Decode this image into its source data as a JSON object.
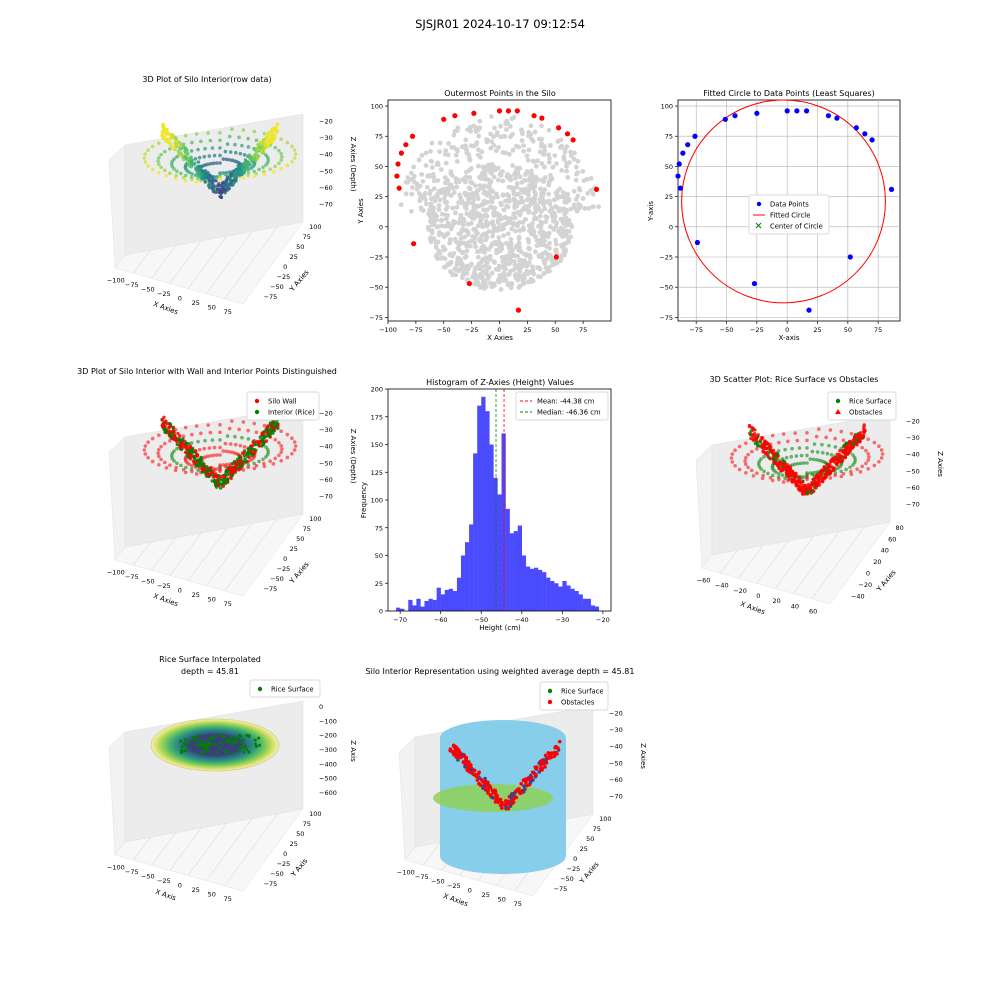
{
  "suptitle": "SJSJR01 2024-10-17 09:12:54",
  "colors": {
    "red": "#ff0000",
    "blue": "#0000ff",
    "green": "#008000",
    "gray": "#d3d3d3",
    "hist": "#4a4aff",
    "cylinder": "#87ceeb"
  },
  "chart_data": [
    {
      "id": "p1",
      "type": "scatter3d",
      "title": "3D Plot of Silo Interior(row data)",
      "xlabel": "X Axies",
      "ylabel": "Y Axies",
      "zlabel": "Z Axies (Depth)",
      "xticks": [
        "−100",
        "−75",
        "−50",
        "−25",
        "0",
        "25",
        "50",
        "75"
      ],
      "yticks": [
        "−75",
        "−50",
        "−25",
        "0",
        "25",
        "50",
        "75",
        "100"
      ],
      "zticks": [
        "−70",
        "−60",
        "−50",
        "−40",
        "−30",
        "−20"
      ],
      "colormap": "viridis"
    },
    {
      "id": "p2",
      "type": "scatter",
      "title": "Outermost Points in the Silo",
      "xlabel": "X Axies",
      "ylabel": "Y Axies",
      "xlim": [
        -100,
        100
      ],
      "ylim": [
        -78,
        105
      ],
      "xticks": [
        "−100",
        "−75",
        "−50",
        "−25",
        "0",
        "25",
        "50",
        "75"
      ],
      "yticks": [
        "−75",
        "−50",
        "−25",
        "0",
        "25",
        "50",
        "75",
        "100"
      ],
      "outer_points": [
        [
          -92,
          42
        ],
        [
          -91,
          52
        ],
        [
          -90,
          32
        ],
        [
          -88,
          61
        ],
        [
          -84,
          68
        ],
        [
          -78,
          75
        ],
        [
          -77,
          -14
        ],
        [
          -50,
          89
        ],
        [
          -40,
          92
        ],
        [
          -27,
          -47
        ],
        [
          -23,
          94
        ],
        [
          0,
          96
        ],
        [
          8,
          96
        ],
        [
          16,
          96
        ],
        [
          17,
          -69
        ],
        [
          31,
          92
        ],
        [
          38,
          90
        ],
        [
          51,
          -25
        ],
        [
          53,
          82
        ],
        [
          61,
          77
        ],
        [
          66,
          72
        ],
        [
          87,
          31
        ]
      ]
    },
    {
      "id": "p3",
      "type": "scatter",
      "title": "Fitted Circle to Data Points (Least Squares)",
      "xlabel": "X-axis",
      "ylabel": "Y-axis",
      "xlim": [
        -90,
        93
      ],
      "ylim": [
        -78,
        105
      ],
      "xticks": [
        "−75",
        "−50",
        "−25",
        "0",
        "25",
        "50",
        "75"
      ],
      "yticks": [
        "−75",
        "−50",
        "−25",
        "0",
        "25",
        "50",
        "75",
        "100"
      ],
      "grid": true,
      "legend": [
        "Data Points",
        "Fitted Circle",
        "Center of Circle"
      ],
      "legend_position": "center",
      "points": [
        [
          -90,
          42
        ],
        [
          -89,
          52
        ],
        [
          -88,
          32
        ],
        [
          -86,
          61
        ],
        [
          -82,
          68
        ],
        [
          -76,
          75
        ],
        [
          -74,
          -13
        ],
        [
          -51,
          89
        ],
        [
          -43,
          92
        ],
        [
          -27,
          -47
        ],
        [
          -25,
          94
        ],
        [
          0,
          96
        ],
        [
          8,
          96
        ],
        [
          16,
          96
        ],
        [
          18,
          -69
        ],
        [
          34,
          92
        ],
        [
          41,
          90
        ],
        [
          52,
          -25
        ],
        [
          57,
          82
        ],
        [
          64,
          77
        ],
        [
          70,
          72
        ],
        [
          86,
          31
        ]
      ],
      "circle": {
        "cx": -3,
        "cy": 21,
        "r": 84
      }
    },
    {
      "id": "p4",
      "type": "scatter3d",
      "title": "3D Plot of Silo Interior with Wall and Interior Points Distinguished",
      "xlabel": "X Axies",
      "ylabel": "Y Axies",
      "zlabel": "Z Axies (Depth)",
      "xticks": [
        "−100",
        "−75",
        "−50",
        "−25",
        "0",
        "25",
        "50",
        "75"
      ],
      "yticks": [
        "−75",
        "−50",
        "−25",
        "0",
        "25",
        "50",
        "75",
        "100"
      ],
      "zticks": [
        "−70",
        "−60",
        "−50",
        "−40",
        "−30",
        "−20"
      ],
      "legend": [
        "Silo Wall",
        "Interior (Rice)"
      ],
      "legend_position": "top-right"
    },
    {
      "id": "p5",
      "type": "bar",
      "title": "Histogram of Z-Axies (Height) Values",
      "xlabel": "Height (cm)",
      "ylabel": "Frequency",
      "xlim": [
        -73,
        -18
      ],
      "ylim": [
        0,
        200
      ],
      "xticks": [
        "−70",
        "−60",
        "−50",
        "−40",
        "−30",
        "−20"
      ],
      "yticks": [
        "0",
        "25",
        "50",
        "75",
        "100",
        "125",
        "150",
        "175",
        "200"
      ],
      "bin_start": -71,
      "bin_width": 1,
      "values": [
        3,
        2,
        0,
        10,
        5,
        11,
        4,
        9,
        11,
        10,
        21,
        15,
        19,
        20,
        18,
        30,
        50,
        62,
        78,
        142,
        185,
        193,
        180,
        150,
        120,
        105,
        160,
        92,
        70,
        72,
        77,
        50,
        40,
        38,
        39,
        37,
        35,
        30,
        27,
        25,
        22,
        27,
        23,
        20,
        18,
        15,
        11,
        11,
        5,
        4
      ],
      "mean": -44.38,
      "median": -46.36,
      "legend": [
        "Mean: -44.38 cm",
        "Median: -46.36 cm"
      ],
      "legend_position": "top-right"
    },
    {
      "id": "p6",
      "type": "scatter3d",
      "title": "3D Scatter Plot: Rice Surface vs Obstacles",
      "xlabel": "X Axies",
      "ylabel": "Y Axies",
      "zlabel": "Z Axies",
      "xticks": [
        "−60",
        "−40",
        "−20",
        "0",
        "20",
        "40",
        "60"
      ],
      "yticks": [
        "−40",
        "−20",
        "0",
        "20",
        "40",
        "60",
        "80"
      ],
      "zticks": [
        "−70",
        "−60",
        "−50",
        "−40",
        "−30",
        "−20"
      ],
      "legend": [
        "Rice Surface",
        "Obstacles"
      ],
      "legend_position": "top-right"
    },
    {
      "id": "p7",
      "type": "surface3d",
      "title": "Rice Surface Interpolated",
      "subtitle": "depth = 45.81",
      "xlabel": "X Axis",
      "ylabel": "Y Axis",
      "zlabel": "Z Axis",
      "xticks": [
        "−100",
        "−75",
        "−50",
        "−25",
        "0",
        "25",
        "50",
        "75"
      ],
      "yticks": [
        "−75",
        "−50",
        "−25",
        "0",
        "25",
        "50",
        "75",
        "100"
      ],
      "zticks": [
        "−600",
        "−500",
        "−400",
        "−300",
        "−200",
        "−100",
        "0"
      ],
      "legend": [
        "Rice Surface"
      ],
      "legend_position": "top-right"
    },
    {
      "id": "p8",
      "type": "scatter3d",
      "title": "Silo Interior Representation using weighted average depth = 45.81",
      "xlabel": "X Axies",
      "ylabel": "Y Axies",
      "zlabel": "Z Axies",
      "xticks": [
        "−100",
        "−75",
        "−50",
        "−25",
        "0",
        "25",
        "50",
        "75"
      ],
      "yticks": [
        "−75",
        "−50",
        "−25",
        "0",
        "25",
        "50",
        "75",
        "100"
      ],
      "zticks": [
        "−70",
        "−60",
        "−50",
        "−40",
        "−30",
        "−20"
      ],
      "legend": [
        "Rice Surface",
        "Obstacles"
      ],
      "legend_position": "top-right"
    }
  ]
}
